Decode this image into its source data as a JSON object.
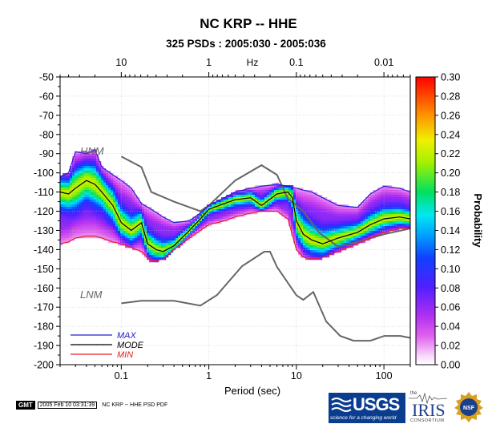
{
  "chart_data": {
    "type": "heatmap",
    "title": "NC KRP -- HHE",
    "subtitle": "325 PSDs : 2005:030 - 2005:036",
    "xlabel": "Period (sec)",
    "top_xlabel": "Hz",
    "x_scale": "log",
    "xlim": [
      0.02,
      200
    ],
    "ylim": [
      -200,
      -50
    ],
    "x_ticks": [
      "0.1",
      "1",
      "10",
      "100"
    ],
    "top_ticks": [
      "10",
      "1",
      "0.1",
      "0.01"
    ],
    "y_ticks": [
      "-50",
      "-60",
      "-70",
      "-80",
      "-90",
      "-100",
      "-110",
      "-120",
      "-130",
      "-140",
      "-150",
      "-160",
      "-170",
      "-180",
      "-190",
      "-200"
    ],
    "colorbar": {
      "label": "Probability",
      "range": [
        0.0,
        0.3
      ],
      "ticks": [
        "0.00",
        "0.02",
        "0.04",
        "0.06",
        "0.08",
        "0.10",
        "0.12",
        "0.14",
        "0.16",
        "0.18",
        "0.20",
        "0.22",
        "0.24",
        "0.26",
        "0.28",
        "0.30"
      ]
    },
    "reference_models": {
      "HNM_label": "HNM",
      "LNM_label": "LNM",
      "HNM": {
        "x": [
          0.1,
          0.17,
          0.22,
          0.4,
          0.8,
          1.0,
          2.0,
          4.0,
          6.0,
          8.0,
          12.0,
          18.0,
          30.0,
          60.0,
          100.0,
          200.0
        ],
        "y": [
          -91.5,
          -97.0,
          -110.0,
          -115.0,
          -120.0,
          -117.0,
          -104.0,
          -96.0,
          -101.0,
          -113.5,
          -120.0,
          -131.0,
          -138.5,
          -135.0,
          -132.0,
          -129.0
        ]
      },
      "LNM": {
        "x": [
          0.1,
          0.17,
          0.4,
          0.8,
          1.24,
          2.4,
          4.3,
          5.0,
          6.0,
          10.0,
          12.0,
          15.6,
          21.9,
          31.6,
          45.0,
          70.0,
          101.0,
          154.0,
          200.0
        ],
        "y": [
          -168.0,
          -166.7,
          -166.7,
          -169.2,
          -163.7,
          -148.6,
          -141.1,
          -141.1,
          -149.0,
          -163.8,
          -166.2,
          -162.1,
          -177.5,
          -185.0,
          -187.5,
          -187.5,
          -185.0,
          -185.0,
          -186.0
        ]
      }
    },
    "series": [
      {
        "name": "MAX",
        "color": "#2020d0",
        "x": [
          0.02,
          0.025,
          0.03,
          0.04,
          0.05,
          0.06,
          0.08,
          0.1,
          0.13,
          0.17,
          0.22,
          0.3,
          0.4,
          0.6,
          0.8,
          1.0,
          1.5,
          2.0,
          3.0,
          4.0,
          6.0,
          8.0,
          10.0,
          12.0,
          15.0,
          20.0,
          30.0,
          50.0,
          70.0,
          100.0,
          150.0,
          200.0
        ],
        "y": [
          -102,
          -100,
          -89,
          -90,
          -88,
          -97,
          -101,
          -104,
          -108,
          -116,
          -119,
          -123,
          -126,
          -125,
          -121,
          -117,
          -113,
          -110,
          -108,
          -107,
          -106,
          -107,
          -108,
          -109,
          -110,
          -113,
          -117,
          -118,
          -111,
          -107,
          -108,
          -110
        ]
      },
      {
        "name": "MODE",
        "color": "#000000",
        "x": [
          0.02,
          0.025,
          0.03,
          0.04,
          0.05,
          0.06,
          0.08,
          0.1,
          0.13,
          0.17,
          0.2,
          0.25,
          0.3,
          0.4,
          0.6,
          0.8,
          1.0,
          1.5,
          2.0,
          3.0,
          4.0,
          6.0,
          8.0,
          9.0,
          10.0,
          12.0,
          15.0,
          20.0,
          30.0,
          50.0,
          70.0,
          100.0,
          150.0,
          200.0
        ],
        "y": [
          -110,
          -111,
          -108,
          -104,
          -106,
          -110,
          -117,
          -126,
          -130,
          -126,
          -137,
          -140,
          -141,
          -138,
          -130,
          -124,
          -119,
          -116,
          -114,
          -113,
          -117,
          -111,
          -110,
          -113,
          -125,
          -132,
          -135,
          -137,
          -134,
          -131,
          -127,
          -124,
          -123,
          -124
        ]
      },
      {
        "name": "MIN",
        "color": "#e02020",
        "x": [
          0.02,
          0.025,
          0.03,
          0.04,
          0.05,
          0.06,
          0.08,
          0.1,
          0.13,
          0.17,
          0.22,
          0.3,
          0.4,
          0.6,
          0.8,
          1.0,
          1.5,
          2.0,
          3.0,
          4.0,
          6.0,
          8.0,
          10.0,
          12.0,
          15.0,
          20.0,
          30.0,
          50.0,
          70.0,
          100.0,
          150.0,
          200.0
        ],
        "y": [
          -137,
          -136,
          -134,
          -133,
          -133,
          -134,
          -136,
          -137,
          -139,
          -141,
          -146,
          -145,
          -140,
          -134,
          -130,
          -127,
          -125,
          -123,
          -121,
          -120,
          -120,
          -124,
          -140,
          -144,
          -145,
          -144,
          -141,
          -137,
          -134,
          -131,
          -129,
          -129
        ]
      }
    ],
    "legend": {
      "placement": "bottom-left",
      "entries": [
        "MAX",
        "MODE",
        "MIN"
      ]
    },
    "grid": true
  },
  "footer": {
    "gmt_label": "GMT",
    "timestamp": "2005 Feb 10 03:31:39",
    "caption": "NC KRP -- HHE PSD PDF"
  },
  "logos": {
    "usgs_text": "USGS",
    "usgs_tagline": "science for a changing world",
    "iris_text": "IRIS",
    "iris_prefix": "the",
    "iris_suffix": "CONSORTIUM",
    "nsf_text": "NSF"
  }
}
